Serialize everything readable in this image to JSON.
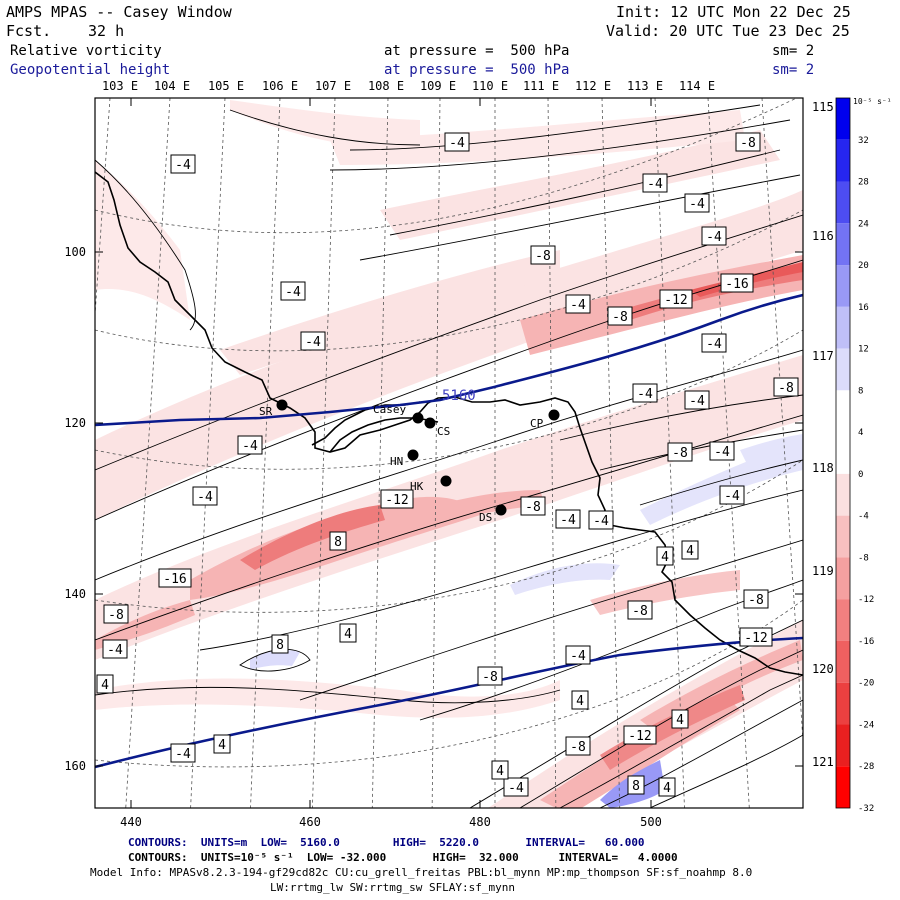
{
  "header": {
    "title": "AMPS MPAS -- Casey Window",
    "fcst_label": "Fcst.",
    "fcst_value": "32 h",
    "init": "Init: 12 UTC Mon 22 Dec 25",
    "valid": "Valid: 20 UTC Tue 23 Dec 25",
    "field1_name": "Relative vorticity",
    "field1_pressure": "at pressure =  500 hPa",
    "field1_sm": "sm= 2",
    "field2_name": "Geopotential height",
    "field2_pressure": "at pressure =  500 hPa",
    "field2_sm": "sm= 2"
  },
  "axes": {
    "top_lon_labels": [
      "103 E",
      "104 E",
      "105 E",
      "106 E",
      "107 E",
      "108 E",
      "109 E",
      "110 E",
      "111 E",
      "112 E",
      "113 E",
      "114 E"
    ],
    "right_lon_labels": [
      "115 E",
      "116 E",
      "117 E",
      "118 E",
      "119 E",
      "120 E",
      "121 E"
    ],
    "y_ticks": [
      "100",
      "120",
      "140",
      "160"
    ],
    "x_ticks": [
      "440",
      "460",
      "480",
      "500"
    ]
  },
  "stations": [
    {
      "code": "SR",
      "label": "SR"
    },
    {
      "code": "Casey",
      "label": "Casey"
    },
    {
      "code": "CS",
      "label": "CS"
    },
    {
      "code": "HN",
      "label": "HN"
    },
    {
      "code": "HK",
      "label": "HK"
    },
    {
      "code": "CP",
      "label": "CP"
    },
    {
      "code": "DS",
      "label": "DS"
    }
  ],
  "height_contour_label": "5160",
  "contour_labels": [
    "-4",
    "-4",
    "-8",
    "-4",
    "-4",
    "-4",
    "-8",
    "-4",
    "-4",
    "-4",
    "-8",
    "-12",
    "-16",
    "-8",
    "-4",
    "-4",
    "-4",
    "-8",
    "-4",
    "-4",
    "-4",
    "-8",
    "-4",
    "-12",
    "-8",
    "-4",
    "8",
    "-16",
    "-8",
    "-4",
    "-8",
    "8",
    "4",
    "4",
    "-8",
    "4",
    "-4",
    "-12",
    "-4",
    "4",
    "-4",
    "4",
    "4",
    "-8",
    "-12",
    "8",
    "4",
    "-4",
    "4",
    "4"
  ],
  "colorbar": {
    "units": "10⁻⁵ s⁻¹",
    "levels": [
      "32",
      "28",
      "24",
      "20",
      "16",
      "12",
      "8",
      "4",
      "0",
      "-4",
      "-8",
      "-12",
      "-16",
      "-20",
      "-24",
      "-28",
      "-32"
    ],
    "colors": [
      "#0000ee",
      "#2626f0",
      "#4d4df2",
      "#7373f4",
      "#9999f6",
      "#bfbff8",
      "#dcdcfb",
      "#ffffff",
      "#ffffff",
      "#fbe0e0",
      "#f8c0c0",
      "#f5a0a0",
      "#f28080",
      "#ef6060",
      "#ec4040",
      "#e92020",
      "#ff0000"
    ]
  },
  "footer": {
    "line1": "CONTOURS:  UNITS=m  LOW=  5160.0        HIGH=  5220.0       INTERVAL=   60.000",
    "line2": "CONTOURS:  UNITS=10⁻⁵ s⁻¹  LOW= -32.000       HIGH=  32.000      INTERVAL=   4.0000",
    "line3": "Model Info: MPASv8.2.3-194-gf29cd82c CU:cu_grell_freitas PBL:bl_mynn MP:mp_thompson SF:sf_noahmp 8.0",
    "line4": "LW:rrtmg_lw SW:rrtmg_sw SFLAY:sf_mynn"
  }
}
